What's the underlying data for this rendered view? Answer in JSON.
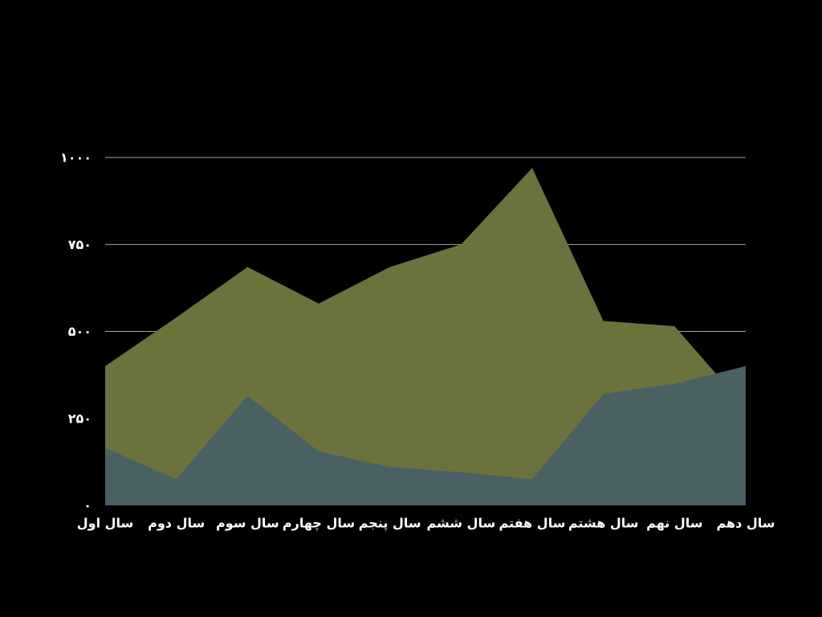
{
  "chart_data": {
    "type": "area",
    "stacked": false,
    "categories": [
      "سال اول",
      "سال دوم",
      "سال سوم",
      "سال چهارم",
      "سال پنجم",
      "سال ششم",
      "سال هفتم",
      "سال هشتم",
      "سال نهم",
      "سال دهم"
    ],
    "series": [
      {
        "values": [
          400,
          540,
          685,
          580,
          685,
          750,
          970,
          530,
          515,
          280
        ],
        "color": "#6b723c"
      },
      {
        "values": [
          165,
          75,
          315,
          155,
          110,
          95,
          75,
          320,
          350,
          400
        ],
        "color": "#4a6163"
      }
    ],
    "y_ticks": [
      "۰",
      "۲۵۰",
      "۵۰۰",
      "۷۵۰",
      "۱۰۰۰"
    ],
    "y_tick_values": [
      0,
      250,
      500,
      750,
      1000
    ],
    "ylim": [
      0,
      1000
    ],
    "grid": true,
    "legend": "none",
    "background": "#000000",
    "gridline_color": "#ffffff",
    "text_color": "#ffffff"
  }
}
